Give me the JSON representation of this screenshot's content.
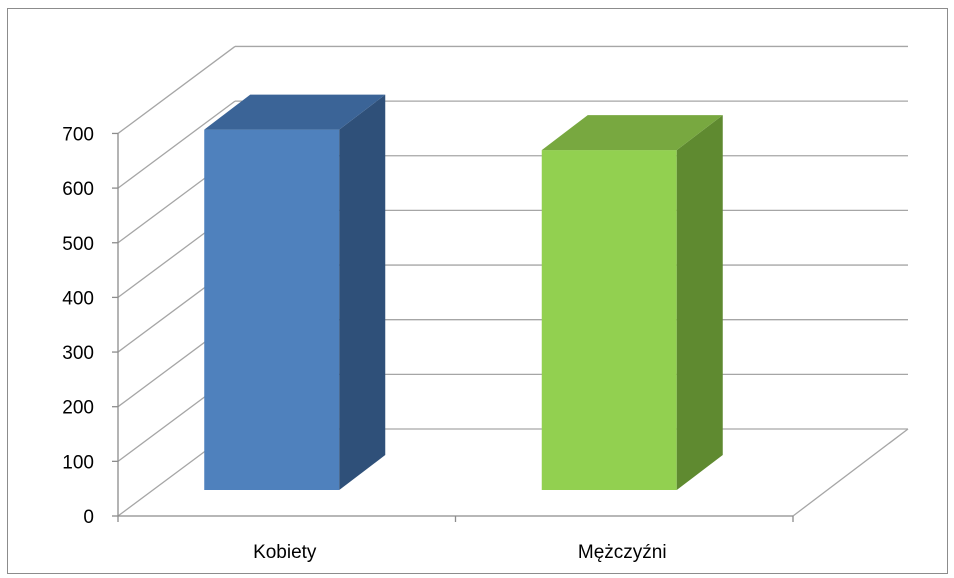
{
  "chart_data": {
    "type": "bar",
    "style": "3d-column",
    "categories": [
      "Kobiety",
      "Mężczyźni"
    ],
    "values": [
      669,
      631
    ],
    "bar_colors": [
      {
        "front": "#4f81bd",
        "side": "#2f5079",
        "top": "#3b6497"
      },
      {
        "front": "#92d050",
        "side": "#5f8a30",
        "top": "#78a840"
      }
    ],
    "ylim": [
      0,
      700
    ],
    "yticks": [
      "0",
      "100",
      "200",
      "300",
      "400",
      "500",
      "600",
      "700"
    ],
    "grid": true,
    "legend": "none",
    "title": "",
    "xlabel": "",
    "ylabel": ""
  }
}
